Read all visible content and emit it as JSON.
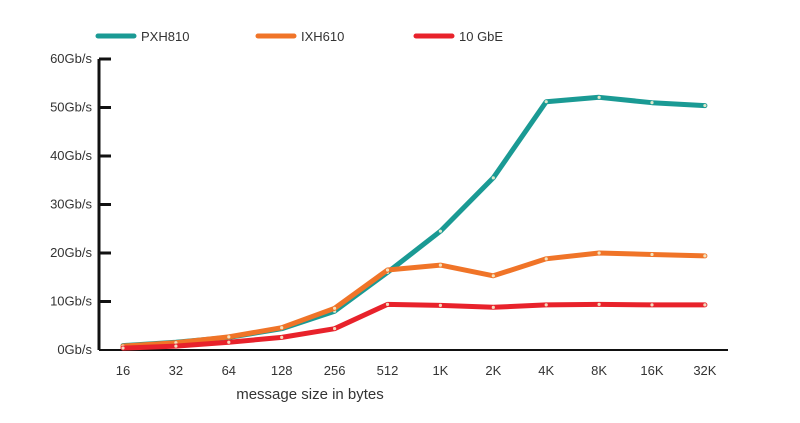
{
  "chart_data": {
    "type": "line",
    "title": "",
    "xlabel": "message size in bytes",
    "ylabel": "",
    "categories": [
      "16",
      "32",
      "64",
      "128",
      "256",
      "512",
      "1K",
      "2K",
      "4K",
      "8K",
      "16K",
      "32K"
    ],
    "yticks": [
      "0Gb/s",
      "10Gb/s",
      "20Gb/s",
      "30Gb/s",
      "40Gb/s",
      "50Gb/s",
      "60Gb/s"
    ],
    "ylim": [
      0,
      60
    ],
    "grid": false,
    "legend_position": "top",
    "series": [
      {
        "name": "PXH810",
        "color": "#1a9a94",
        "values": [
          0.9,
          1.6,
          2.6,
          4.4,
          8.0,
          16.0,
          24.5,
          35.5,
          51.2,
          52.1,
          51.0,
          50.4
        ]
      },
      {
        "name": "IXH610",
        "color": "#f07428",
        "values": [
          0.8,
          1.5,
          2.7,
          4.6,
          8.6,
          16.5,
          17.5,
          15.3,
          18.8,
          20.0,
          19.7,
          19.4
        ]
      },
      {
        "name": "10 GbE",
        "color": "#e8222b",
        "values": [
          0.4,
          0.8,
          1.6,
          2.6,
          4.4,
          9.4,
          9.2,
          8.8,
          9.3,
          9.4,
          9.3,
          9.3
        ]
      }
    ]
  }
}
